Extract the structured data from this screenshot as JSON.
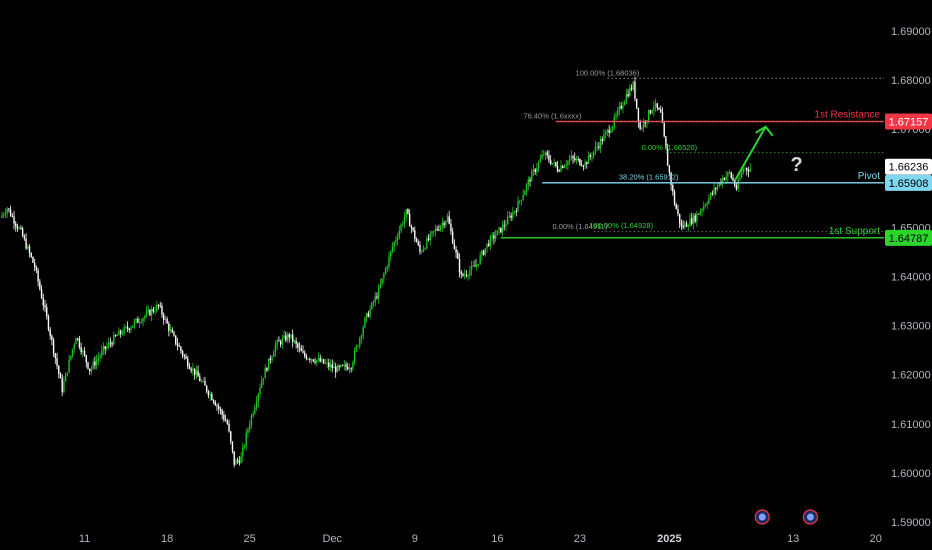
{
  "chart_data": {
    "type": "candlestick",
    "title": "",
    "xlabel": "",
    "ylabel": "",
    "ylim": [
      1.59,
      1.695
    ],
    "grid": false,
    "y_ticks": [
      "1.69000",
      "1.68000",
      "1.67000",
      "1.66000",
      "1.65000",
      "1.64000",
      "1.63000",
      "1.62000",
      "1.61000",
      "1.60000",
      "1.59000"
    ],
    "y_tick_values": [
      1.69,
      1.68,
      1.67,
      1.66,
      1.65,
      1.64,
      1.63,
      1.62,
      1.61,
      1.6,
      1.59
    ],
    "x_ticks": [
      {
        "label": "11",
        "index": 12,
        "bold": false
      },
      {
        "label": "18",
        "index": 24,
        "bold": false
      },
      {
        "label": "25",
        "index": 36,
        "bold": false
      },
      {
        "label": "Dec",
        "index": 48,
        "bold": false
      },
      {
        "label": "9",
        "index": 60,
        "bold": false
      },
      {
        "label": "16",
        "index": 72,
        "bold": false
      },
      {
        "label": "23",
        "index": 84,
        "bold": false
      },
      {
        "label": "2025",
        "index": 97,
        "bold": true
      },
      {
        "label": "13",
        "index": 115,
        "bold": false
      },
      {
        "label": "20",
        "index": 127,
        "bold": false
      }
    ],
    "x_count": 128,
    "trend_anchors": [
      [
        0,
        1.652
      ],
      [
        1,
        1.654
      ],
      [
        3,
        1.649
      ],
      [
        5,
        1.642
      ],
      [
        7,
        1.63
      ],
      [
        9,
        1.617
      ],
      [
        11,
        1.628
      ],
      [
        13,
        1.621
      ],
      [
        15,
        1.625
      ],
      [
        17,
        1.628
      ],
      [
        20,
        1.631
      ],
      [
        23,
        1.634
      ],
      [
        25,
        1.628
      ],
      [
        27,
        1.623
      ],
      [
        29,
        1.619
      ],
      [
        31,
        1.615
      ],
      [
        33,
        1.61
      ],
      [
        34,
        1.602
      ],
      [
        35,
        1.603
      ],
      [
        36,
        1.609
      ],
      [
        38,
        1.619
      ],
      [
        40,
        1.626
      ],
      [
        42,
        1.628
      ],
      [
        44,
        1.624
      ],
      [
        46,
        1.623
      ],
      [
        49,
        1.621
      ],
      [
        51,
        1.622
      ],
      [
        53,
        1.631
      ],
      [
        55,
        1.637
      ],
      [
        57,
        1.646
      ],
      [
        59,
        1.653
      ],
      [
        61,
        1.645
      ],
      [
        63,
        1.649
      ],
      [
        65,
        1.652
      ],
      [
        67,
        1.64
      ],
      [
        69,
        1.642
      ],
      [
        71,
        1.647
      ],
      [
        73,
        1.65
      ],
      [
        75,
        1.654
      ],
      [
        77,
        1.66
      ],
      [
        79,
        1.665
      ],
      [
        81,
        1.662
      ],
      [
        83,
        1.664
      ],
      [
        85,
        1.663
      ],
      [
        87,
        1.667
      ],
      [
        89,
        1.671
      ],
      [
        91,
        1.677
      ],
      [
        92,
        1.679
      ],
      [
        93,
        1.67
      ],
      [
        95,
        1.675
      ],
      [
        96,
        1.673
      ],
      [
        97,
        1.663
      ],
      [
        98,
        1.655
      ],
      [
        99,
        1.65
      ],
      [
        101,
        1.652
      ],
      [
        103,
        1.656
      ],
      [
        105,
        1.66
      ],
      [
        106,
        1.661
      ],
      [
        107,
        1.658
      ],
      [
        108,
        1.662
      ]
    ],
    "levels": [
      {
        "name": "1st Resistance",
        "value": 1.67157,
        "color": "#f23645",
        "tag": "1.67157"
      },
      {
        "name": "Pivot",
        "value": 1.65908,
        "color": "#7ed8f0",
        "tag": "1.65908"
      },
      {
        "name": "1st Support",
        "value": 1.64787,
        "color": "#2bd62b",
        "tag": "1.64787"
      }
    ],
    "current_price": {
      "value": 1.66236,
      "tag": "1.66236"
    },
    "fib_labels": [
      {
        "text": "100.00% (1.68036)",
        "value": 1.68036,
        "index": 88
      },
      {
        "text": "0.00% (1.66520)",
        "value": 1.6652,
        "index": 97
      },
      {
        "text": "38.20% (1.65912)",
        "value": 1.65912,
        "index": 94
      },
      {
        "text": "0.00% (1.64911)",
        "value": 1.64911,
        "index": 84
      },
      {
        "text": "100.00% (1.64928)",
        "value": 1.64928,
        "index": 90
      },
      {
        "text": "76.40% (1.6xxxx)",
        "value": 1.67157,
        "index": 80
      }
    ],
    "annotation": "?"
  },
  "colors": {
    "background": "#000000",
    "candle_up": "#22c322",
    "candle_down": "#ffffff",
    "axis_text": "#b2b5be",
    "resistance": "#f23645",
    "pivot": "#7ed8f0",
    "support": "#2bd62b",
    "arrow": "#2bd62b"
  },
  "icons": [
    "calendar-event-icon",
    "calendar-event-icon"
  ]
}
